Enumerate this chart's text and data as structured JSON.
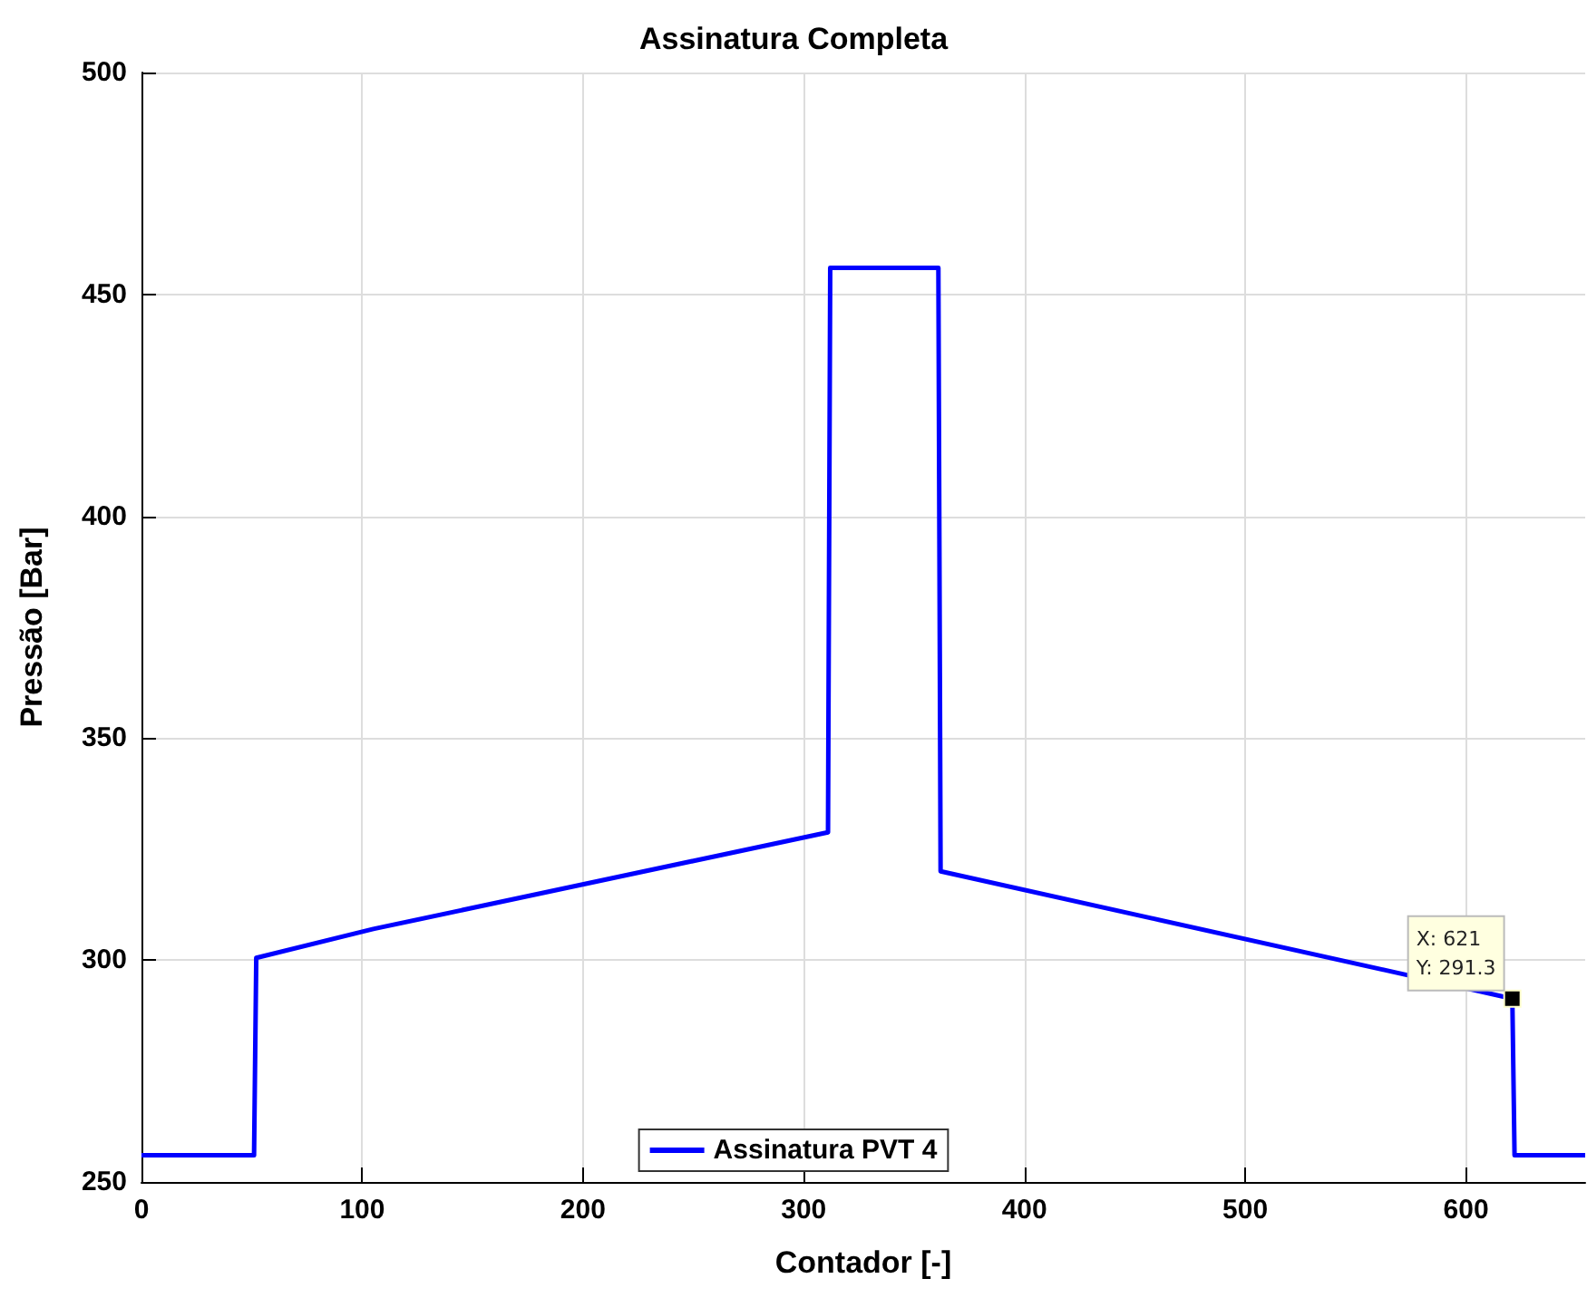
{
  "chart_data": {
    "type": "line",
    "title": "Assinatura Completa",
    "xlabel": "Contador [-]",
    "ylabel": "Pressão [Bar]",
    "xlim": [
      0,
      654
    ],
    "xticks": [
      0,
      100,
      200,
      300,
      400,
      500,
      600
    ],
    "ylim": [
      250,
      500
    ],
    "yticks": [
      250,
      300,
      350,
      400,
      450,
      500
    ],
    "grid": true,
    "legend": "bottom",
    "line_style": "solid",
    "marker": "none",
    "series": [
      {
        "name": "Assinatura PVT 4",
        "color": "#0000ff",
        "x": [
          0,
          51,
          52,
          105,
          311,
          312,
          361,
          362,
          570,
          621,
          622,
          654
        ],
        "values": [
          256,
          256,
          300.5,
          307,
          328.8,
          456,
          456,
          320,
          297,
          291.3,
          256,
          256
        ]
      }
    ],
    "annotations": [
      {
        "text": "X: 621\nY: 291.3",
        "x": 621,
        "y": 291.3
      }
    ]
  }
}
